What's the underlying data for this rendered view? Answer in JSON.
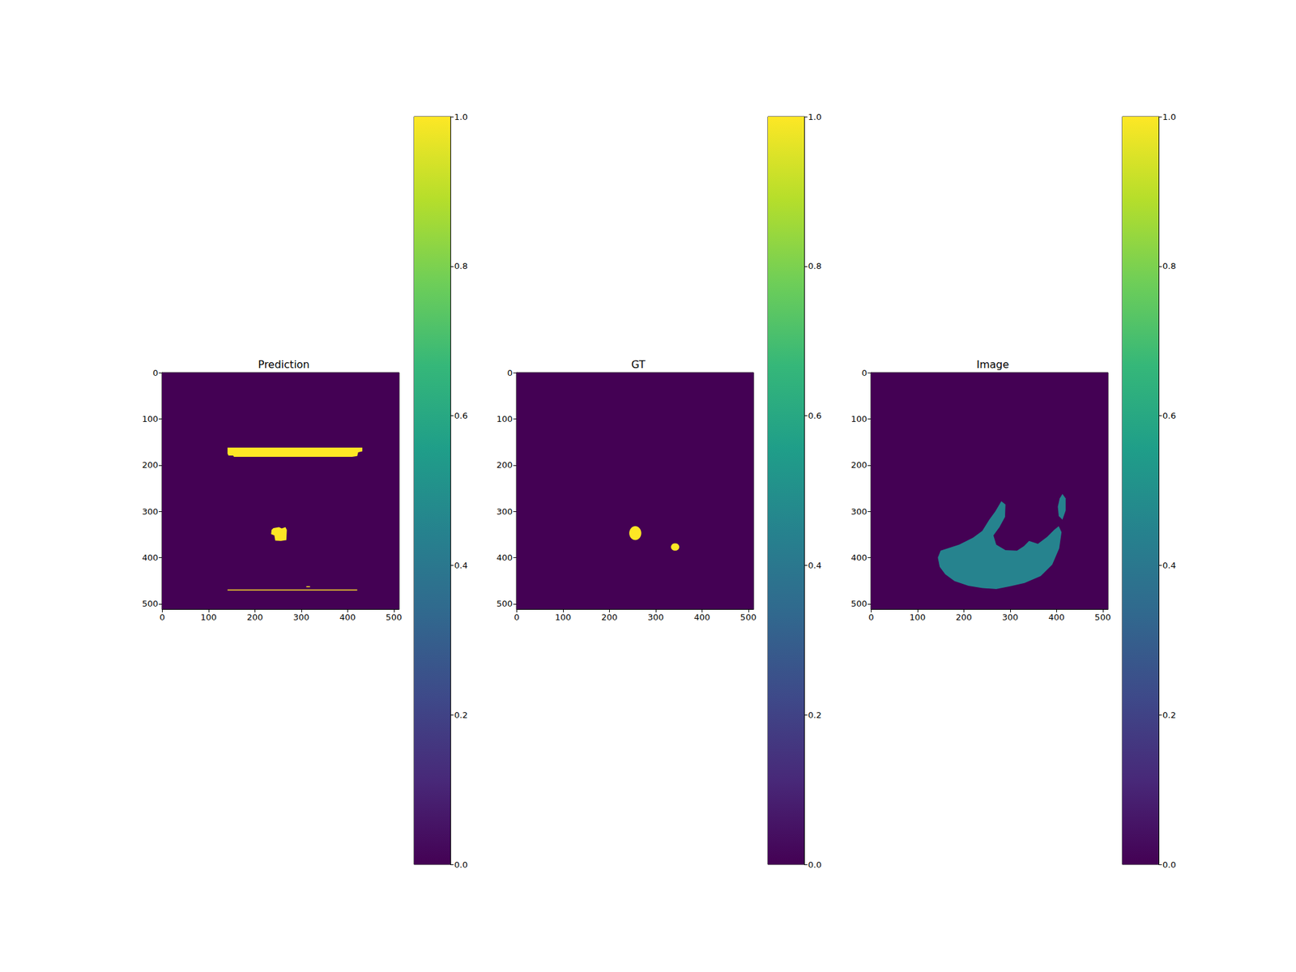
{
  "chart_data": [
    {
      "type": "heatmap",
      "title": "Prediction",
      "xlim": [
        -0.5,
        511.5
      ],
      "ylim": [
        511.5,
        -0.5
      ],
      "xticks": [
        0,
        100,
        200,
        300,
        400,
        500
      ],
      "yticks": [
        0,
        100,
        200,
        300,
        400,
        500
      ],
      "grid": false,
      "background": 0,
      "regions": [
        {
          "shape": "polygon",
          "value": 1,
          "points": [
            [
              141,
              162
            ],
            [
              432,
              162
            ],
            [
              432,
              170
            ],
            [
              423,
              172
            ],
            [
              421,
              180
            ],
            [
              410,
              182
            ],
            [
              155,
              182
            ],
            [
              153,
              179
            ],
            [
              143,
              179
            ],
            [
              141,
              175
            ]
          ]
        },
        {
          "shape": "polygon",
          "value": 1,
          "points": [
            [
              240,
              336
            ],
            [
              252,
              334
            ],
            [
              258,
              337
            ],
            [
              266,
              334
            ],
            [
              269,
              340
            ],
            [
              268,
              362
            ],
            [
              256,
              364
            ],
            [
              244,
              363
            ],
            [
              242,
              352
            ],
            [
              235,
              349
            ],
            [
              236,
              340
            ]
          ]
        },
        {
          "shape": "polygon",
          "value": 1,
          "points": [
            [
              141,
              469
            ],
            [
              421,
              469
            ],
            [
              421,
              471
            ],
            [
              141,
              471
            ]
          ]
        },
        {
          "shape": "polygon",
          "value": 1,
          "points": [
            [
              311,
              462
            ],
            [
              319,
              462
            ],
            [
              319,
              464
            ],
            [
              311,
              464
            ]
          ]
        }
      ],
      "colorbar": {
        "range": [
          0,
          1
        ],
        "ticks": [
          {
            "value": 0,
            "label": "0.0"
          },
          {
            "value": 0.2,
            "label": "0.2"
          },
          {
            "value": 0.4,
            "label": "0.4"
          },
          {
            "value": 0.6,
            "label": "0.6"
          },
          {
            "value": 0.8,
            "label": "0.8"
          },
          {
            "value": 1,
            "label": "1.0"
          }
        ]
      }
    },
    {
      "type": "heatmap",
      "title": "GT",
      "xlim": [
        -0.5,
        511.5
      ],
      "ylim": [
        511.5,
        -0.5
      ],
      "xticks": [
        0,
        100,
        200,
        300,
        400,
        500
      ],
      "yticks": [
        0,
        100,
        200,
        300,
        400,
        500
      ],
      "grid": false,
      "background": 0,
      "regions": [
        {
          "shape": "ellipse",
          "value": 1,
          "cx": 256,
          "cy": 347,
          "rx": 13,
          "ry": 15
        },
        {
          "shape": "ellipse",
          "value": 1,
          "cx": 342,
          "cy": 377,
          "rx": 9,
          "ry": 8
        }
      ],
      "colorbar": {
        "range": [
          0,
          1
        ],
        "ticks": [
          {
            "value": 0,
            "label": "0.0"
          },
          {
            "value": 0.2,
            "label": "0.2"
          },
          {
            "value": 0.4,
            "label": "0.4"
          },
          {
            "value": 0.6,
            "label": "0.6"
          },
          {
            "value": 0.8,
            "label": "0.8"
          },
          {
            "value": 1,
            "label": "1.0"
          }
        ]
      }
    },
    {
      "type": "heatmap",
      "title": "Image",
      "xlim": [
        -0.5,
        511.5
      ],
      "ylim": [
        511.5,
        -0.5
      ],
      "xticks": [
        0,
        100,
        200,
        300,
        400,
        500
      ],
      "yticks": [
        0,
        100,
        200,
        300,
        400,
        500
      ],
      "grid": false,
      "background": 0,
      "regions": [
        {
          "shape": "polygon",
          "value": 0.45,
          "points": [
            [
              150,
              385
            ],
            [
              190,
              372
            ],
            [
              220,
              357
            ],
            [
              240,
              342
            ],
            [
              255,
              318
            ],
            [
              268,
              300
            ],
            [
              281,
              278
            ],
            [
              290,
              285
            ],
            [
              289,
              312
            ],
            [
              277,
              334
            ],
            [
              264,
              352
            ],
            [
              270,
              372
            ],
            [
              290,
              384
            ],
            [
              315,
              385
            ],
            [
              330,
              375
            ],
            [
              341,
              364
            ],
            [
              360,
              370
            ],
            [
              380,
              355
            ],
            [
              395,
              340
            ],
            [
              405,
              332
            ],
            [
              411,
              345
            ],
            [
              406,
              380
            ],
            [
              391,
              415
            ],
            [
              366,
              440
            ],
            [
              331,
              455
            ],
            [
              300,
              462
            ],
            [
              270,
              468
            ],
            [
              240,
              466
            ],
            [
              210,
              461
            ],
            [
              180,
              451
            ],
            [
              160,
              436
            ],
            [
              148,
              420
            ],
            [
              144,
              400
            ]
          ]
        },
        {
          "shape": "polygon",
          "value": 0.45,
          "points": [
            [
              405,
              310
            ],
            [
              403,
              290
            ],
            [
              407,
              272
            ],
            [
              413,
              262
            ],
            [
              420,
              272
            ],
            [
              420,
              298
            ],
            [
              413,
              318
            ]
          ]
        }
      ],
      "colorbar": {
        "range": [
          0,
          1
        ],
        "ticks": [
          {
            "value": 0,
            "label": "0.0"
          },
          {
            "value": 0.2,
            "label": "0.2"
          },
          {
            "value": 0.4,
            "label": "0.4"
          },
          {
            "value": 0.6,
            "label": "0.6"
          },
          {
            "value": 0.8,
            "label": "0.8"
          },
          {
            "value": 1,
            "label": "1.0"
          }
        ]
      }
    }
  ]
}
